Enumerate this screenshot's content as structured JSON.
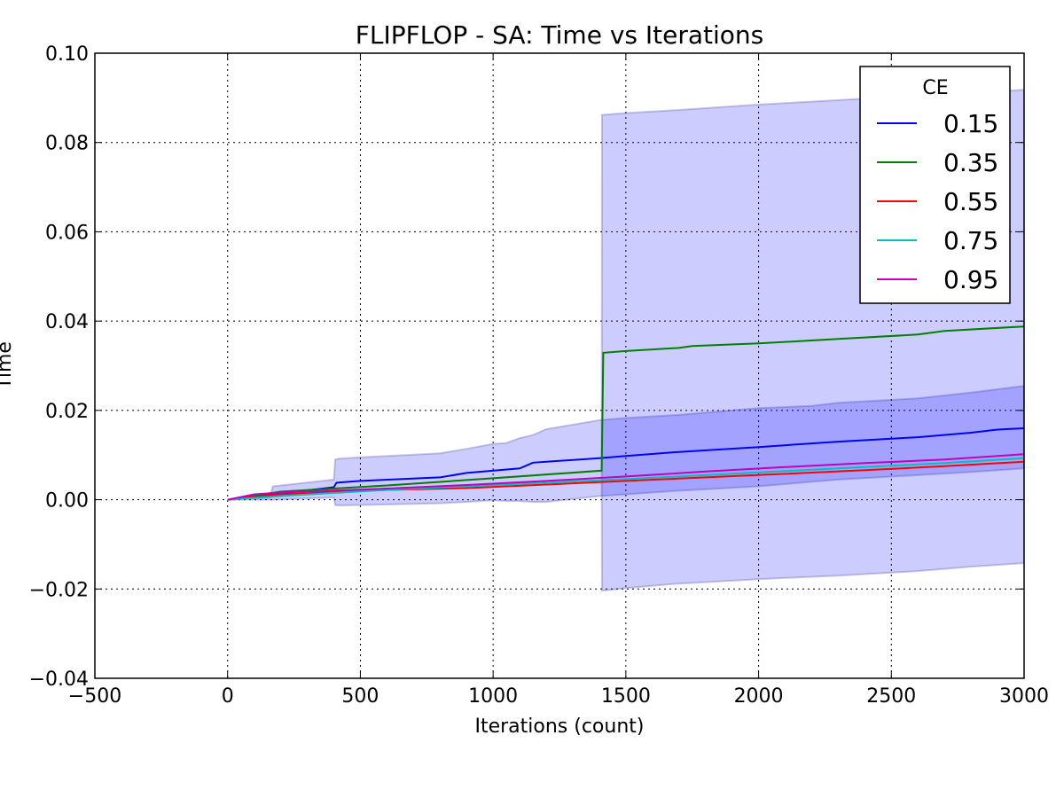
{
  "chart_data": {
    "type": "line",
    "title": "FLIPFLOP - SA: Time vs Iterations",
    "xlabel": "Iterations (count)",
    "ylabel": "Time",
    "xlim": [
      -500,
      3000
    ],
    "ylim": [
      -0.04,
      0.1
    ],
    "xticks": [
      -500,
      0,
      500,
      1000,
      1500,
      2000,
      2500,
      3000
    ],
    "xtick_labels": [
      "−500",
      "0",
      "500",
      "1000",
      "1500",
      "2000",
      "2500",
      "3000"
    ],
    "yticks": [
      -0.04,
      -0.02,
      0.0,
      0.02,
      0.04,
      0.06,
      0.08,
      0.1
    ],
    "ytick_labels": [
      "−0.04",
      "−0.02",
      "0.00",
      "0.02",
      "0.04",
      "0.06",
      "0.08",
      "0.10"
    ],
    "grid": true,
    "legend": {
      "title": "CE",
      "placement": "top-right"
    },
    "series": [
      {
        "name": "0.15",
        "color": "#0000ff",
        "x": [
          0,
          400,
          410,
          500,
          800,
          900,
          1100,
          1150,
          1400,
          1500,
          1700,
          2000,
          2300,
          2600,
          2800,
          2900,
          3000
        ],
        "y": [
          0.0,
          0.0028,
          0.0038,
          0.0042,
          0.005,
          0.006,
          0.007,
          0.0083,
          0.0093,
          0.0098,
          0.0107,
          0.0118,
          0.013,
          0.014,
          0.015,
          0.0157,
          0.016
        ],
        "band": {
          "x": [
            0,
            160,
            170,
            400,
            405,
            420,
            500,
            800,
            900,
            1000,
            1050,
            1100,
            1150,
            1200,
            1400,
            1500,
            1700,
            2000,
            2200,
            2300,
            2600,
            2800,
            3000
          ],
          "upper": [
            0.0,
            0.0005,
            0.003,
            0.0045,
            0.009,
            0.0092,
            0.0095,
            0.0104,
            0.0114,
            0.0125,
            0.0127,
            0.0138,
            0.0145,
            0.0158,
            0.0178,
            0.0183,
            0.019,
            0.0205,
            0.021,
            0.0217,
            0.0227,
            0.024,
            0.0255
          ],
          "lower": [
            0.0,
            0.0,
            0.0,
            0.0005,
            -0.0012,
            -0.0013,
            -0.0012,
            -0.0008,
            -0.0005,
            -0.0001,
            -0.0003,
            -0.0003,
            -0.0005,
            -0.0005,
            0.0008,
            0.0012,
            0.002,
            0.003,
            0.004,
            0.0045,
            0.0055,
            0.0062,
            0.007
          ]
        }
      },
      {
        "name": "0.35",
        "color": "#007f00",
        "x": [
          0,
          200,
          600,
          1000,
          1409,
          1415,
          1500,
          1700,
          1750,
          2000,
          2300,
          2600,
          2700,
          3000
        ],
        "y": [
          0.0,
          0.0018,
          0.0032,
          0.0048,
          0.0065,
          0.0329,
          0.0333,
          0.034,
          0.0344,
          0.035,
          0.036,
          0.037,
          0.0378,
          0.0388
        ],
        "band": {
          "x": [
            0,
            200,
            600,
            1000,
            1409,
            1410,
            1500,
            1700,
            2000,
            2300,
            2600,
            2800,
            3000
          ],
          "upper": [
            0.0,
            0.0018,
            0.0032,
            0.0048,
            0.0065,
            0.0862,
            0.0866,
            0.0873,
            0.0885,
            0.0895,
            0.0905,
            0.0912,
            0.0918
          ],
          "lower": [
            0.0,
            0.0018,
            0.0032,
            0.0048,
            0.0065,
            -0.0204,
            -0.0198,
            -0.0188,
            -0.0178,
            -0.017,
            -0.016,
            -0.015,
            -0.0142
          ]
        }
      },
      {
        "name": "0.55",
        "color": "#ff0000",
        "x": [
          0,
          200,
          600,
          900,
          1200,
          1500,
          1800,
          2100,
          2400,
          2700,
          3000
        ],
        "y": [
          0.0,
          0.0012,
          0.0022,
          0.0026,
          0.0034,
          0.0042,
          0.005,
          0.0058,
          0.0066,
          0.0075,
          0.0085
        ]
      },
      {
        "name": "0.75",
        "color": "#00bfbf",
        "x": [
          0,
          200,
          600,
          900,
          1200,
          1500,
          1800,
          2100,
          2400,
          2700,
          3000
        ],
        "y": [
          0.0,
          0.0008,
          0.0022,
          0.003,
          0.0038,
          0.0046,
          0.0055,
          0.0064,
          0.0073,
          0.0082,
          0.0093
        ]
      },
      {
        "name": "0.95",
        "color": "#bf00bf",
        "x": [
          0,
          100,
          200,
          600,
          900,
          1200,
          1500,
          1800,
          2100,
          2400,
          2700,
          3000
        ],
        "y": [
          0.0,
          0.0012,
          0.0016,
          0.0025,
          0.0033,
          0.0042,
          0.0052,
          0.0063,
          0.0073,
          0.0082,
          0.009,
          0.0102
        ]
      }
    ]
  }
}
